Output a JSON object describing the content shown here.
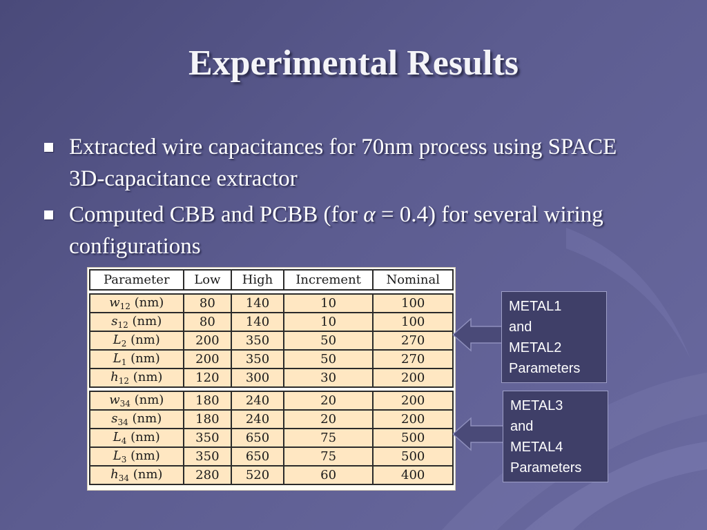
{
  "slide": {
    "title": "Experimental Results",
    "bullets": [
      {
        "text": "Extracted wire capacitances for 70nm process using SPACE 3D-capacitance extractor"
      },
      {
        "before": "Computed CBB and PCBB (for ",
        "symbol": "α",
        "after": " = 0.4) for several wiring configurations"
      }
    ]
  },
  "table": {
    "headers": [
      "Parameter",
      "Low",
      "High",
      "Increment",
      "Nominal"
    ],
    "groups": [
      {
        "rows": [
          {
            "sym": "w",
            "sub": "12",
            "unit": " (nm)",
            "values": [
              "80",
              "140",
              "10",
              "100"
            ]
          },
          {
            "sym": "s",
            "sub": "12",
            "unit": " (nm)",
            "values": [
              "80",
              "140",
              "10",
              "100"
            ]
          },
          {
            "sym": "L",
            "sub": "2",
            "unit": " (nm)",
            "values": [
              "200",
              "350",
              "50",
              "270"
            ]
          },
          {
            "sym": "L",
            "sub": "1",
            "unit": " (nm)",
            "values": [
              "200",
              "350",
              "50",
              "270"
            ]
          },
          {
            "sym": "h",
            "sub": "12",
            "unit": " (nm)",
            "values": [
              "120",
              "300",
              "30",
              "200"
            ]
          }
        ]
      },
      {
        "rows": [
          {
            "sym": "w",
            "sub": "34",
            "unit": " (nm)",
            "values": [
              "180",
              "240",
              "20",
              "200"
            ]
          },
          {
            "sym": "s",
            "sub": "34",
            "unit": " (nm)",
            "values": [
              "180",
              "240",
              "20",
              "200"
            ]
          },
          {
            "sym": "L",
            "sub": "4",
            "unit": " (nm)",
            "values": [
              "350",
              "650",
              "75",
              "500"
            ]
          },
          {
            "sym": "L",
            "sub": "3",
            "unit": " (nm)",
            "values": [
              "350",
              "650",
              "75",
              "500"
            ]
          },
          {
            "sym": "h",
            "sub": "34",
            "unit": " (nm)",
            "values": [
              "280",
              "520",
              "60",
              "400"
            ]
          }
        ]
      }
    ]
  },
  "callouts": {
    "metal12": {
      "lines": [
        "METAL1",
        "and",
        "METAL2",
        "Parameters"
      ]
    },
    "metal34": {
      "lines": [
        "METAL3",
        "and",
        "METAL4",
        "Parameters"
      ]
    }
  },
  "colors": {
    "background": "#5c5c90",
    "table_cell": "#ffe7c2",
    "callout_box": "#3f3f68",
    "arrow": "#4a4a78"
  }
}
